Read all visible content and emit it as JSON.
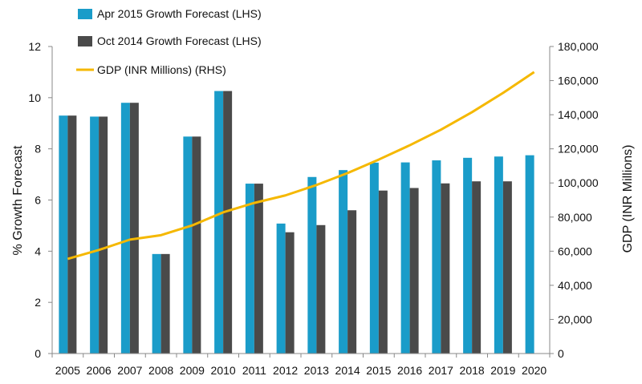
{
  "chart_data": {
    "type": "bar+line",
    "categories": [
      "2005",
      "2006",
      "2007",
      "2008",
      "2009",
      "2010",
      "2011",
      "2012",
      "2013",
      "2014",
      "2015",
      "2016",
      "2017",
      "2018",
      "2019",
      "2020"
    ],
    "series": [
      {
        "name": "Apr 2015 Growth Forecast (LHS)",
        "type": "bar",
        "axis": "left",
        "color": "#1a9cc9",
        "values": [
          9.3,
          9.26,
          9.8,
          3.89,
          8.48,
          10.26,
          6.64,
          5.08,
          6.9,
          7.17,
          7.46,
          7.47,
          7.55,
          7.65,
          7.7,
          7.75
        ]
      },
      {
        "name": "Oct 2014 Growth Forecast (LHS)",
        "type": "bar",
        "axis": "left",
        "color": "#4a4a4a",
        "values": [
          9.3,
          9.26,
          9.8,
          3.89,
          8.48,
          10.26,
          6.64,
          4.74,
          5.02,
          5.6,
          6.37,
          6.47,
          6.65,
          6.73,
          6.73,
          null
        ]
      },
      {
        "name": "GDP (INR Millions) (RHS)",
        "type": "line",
        "axis": "right",
        "color": "#f5b800",
        "values": [
          55500,
          60700,
          66800,
          69400,
          75100,
          82800,
          88300,
          92700,
          98800,
          105800,
          113700,
          122100,
          131200,
          141500,
          152800,
          165000
        ]
      }
    ],
    "y_left": {
      "label": "% Growth Forecast",
      "min": 0,
      "max": 12,
      "ticks": [
        "0",
        "2",
        "4",
        "6",
        "8",
        "10",
        "12"
      ]
    },
    "y_right": {
      "label": "GDP (INR Millions)",
      "min": 0,
      "max": 180000,
      "ticks": [
        "0",
        "20,000",
        "40,000",
        "60,000",
        "80,000",
        "100,000",
        "120,000",
        "140,000",
        "160,000",
        "180,000"
      ]
    },
    "legend": "top-left",
    "grid": false
  }
}
